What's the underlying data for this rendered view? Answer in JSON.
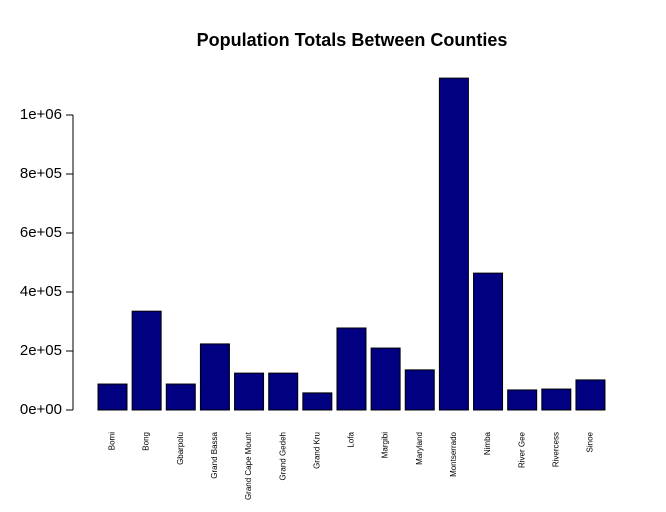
{
  "chart_data": {
    "type": "bar",
    "title": "Population Totals Between Counties",
    "categories": [
      "Bomi",
      "Bong",
      "Gbarpolu",
      "Grand Bassa",
      "Grand Cape Mount",
      "Grand Gedeh",
      "Grand Kru",
      "Lofa",
      "Margibi",
      "Maryland",
      "Montserrado",
      "Nimba",
      "River Gee",
      "Rivercess",
      "Sinoe"
    ],
    "values": [
      88000,
      335000,
      88000,
      224000,
      125000,
      125000,
      58000,
      278000,
      210000,
      136000,
      1125000,
      464000,
      68000,
      71000,
      102000
    ],
    "color": "#000080",
    "ylim": [
      0,
      1200000
    ],
    "yticks": [
      {
        "value": 0,
        "label": "0e+00"
      },
      {
        "value": 200000,
        "label": "2e+05"
      },
      {
        "value": 400000,
        "label": "4e+05"
      },
      {
        "value": 600000,
        "label": "6e+05"
      },
      {
        "value": 800000,
        "label": "8e+05"
      },
      {
        "value": 1000000,
        "label": "1e+06"
      }
    ],
    "grid": false
  }
}
